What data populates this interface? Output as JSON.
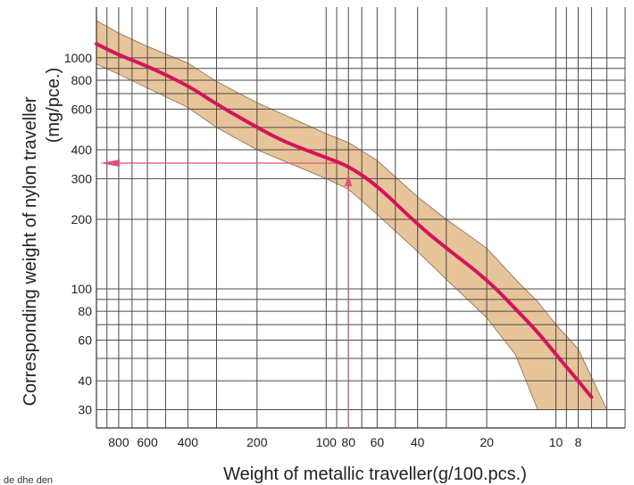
{
  "chart_data": {
    "type": "line",
    "xlabel": "Weight of metallic traveller(g/100.pcs.)",
    "ylabel_line1": "Corresponding weight of nylon traveller",
    "ylabel_line2": "(mg/pce.)",
    "x_scale": "log-reversed",
    "y_scale": "log",
    "xlim": [
      1000,
      5
    ],
    "ylim": [
      25,
      1600
    ],
    "x_ticks": [
      {
        "value": 800,
        "label": "800"
      },
      {
        "value": 600,
        "label": "600"
      },
      {
        "value": 400,
        "label": "400"
      },
      {
        "value": 200,
        "label": "200"
      },
      {
        "value": 100,
        "label": "100"
      },
      {
        "value": 80,
        "label": "80"
      },
      {
        "value": 60,
        "label": "60"
      },
      {
        "value": 40,
        "label": "40"
      },
      {
        "value": 20,
        "label": "20"
      },
      {
        "value": 10,
        "label": "10"
      },
      {
        "value": 8,
        "label": "8"
      }
    ],
    "x_grid": [
      1000,
      900,
      800,
      700,
      600,
      500,
      400,
      300,
      200,
      100,
      90,
      80,
      70,
      60,
      50,
      40,
      30,
      20,
      10,
      9,
      8,
      7,
      6,
      5
    ],
    "y_ticks": [
      {
        "value": 1000,
        "label": "1000"
      },
      {
        "value": 800,
        "label": "800"
      },
      {
        "value": 600,
        "label": "600"
      },
      {
        "value": 400,
        "label": "400"
      },
      {
        "value": 300,
        "label": "300"
      },
      {
        "value": 200,
        "label": "200"
      },
      {
        "value": 100,
        "label": "100"
      },
      {
        "value": 80,
        "label": "80"
      },
      {
        "value": 60,
        "label": "60"
      },
      {
        "value": 40,
        "label": "40"
      },
      {
        "value": 30,
        "label": "30"
      }
    ],
    "y_grid": [
      1000,
      900,
      800,
      700,
      600,
      500,
      400,
      300,
      200,
      100,
      90,
      80,
      70,
      60,
      50,
      40,
      30
    ],
    "series": [
      {
        "color": "#d4145a",
        "points": [
          [
            1000,
            1150
          ],
          [
            800,
            1030
          ],
          [
            600,
            920
          ],
          [
            400,
            760
          ],
          [
            300,
            630
          ],
          [
            200,
            500
          ],
          [
            150,
            430
          ],
          [
            100,
            370
          ],
          [
            80,
            340
          ],
          [
            60,
            280
          ],
          [
            40,
            190
          ],
          [
            30,
            150
          ],
          [
            20,
            110
          ],
          [
            15,
            82
          ],
          [
            12,
            65
          ],
          [
            10,
            52
          ],
          [
            8,
            40
          ],
          [
            7,
            34
          ]
        ]
      }
    ],
    "band": {
      "color": "#e8c49a",
      "upper": [
        [
          1000,
          1450
        ],
        [
          800,
          1280
        ],
        [
          600,
          1120
        ],
        [
          400,
          950
        ],
        [
          300,
          790
        ],
        [
          200,
          640
        ],
        [
          100,
          470
        ],
        [
          80,
          430
        ],
        [
          60,
          360
        ],
        [
          40,
          250
        ],
        [
          30,
          200
        ],
        [
          20,
          150
        ],
        [
          15,
          110
        ],
        [
          12,
          88
        ],
        [
          10,
          70
        ],
        [
          8,
          55
        ],
        [
          6,
          30
        ]
      ],
      "lower": [
        [
          1000,
          940
        ],
        [
          800,
          850
        ],
        [
          600,
          740
        ],
        [
          400,
          610
        ],
        [
          300,
          500
        ],
        [
          200,
          400
        ],
        [
          100,
          300
        ],
        [
          80,
          270
        ],
        [
          60,
          210
        ],
        [
          40,
          145
        ],
        [
          30,
          110
        ],
        [
          20,
          75
        ],
        [
          15,
          52
        ],
        [
          12,
          30
        ]
      ]
    },
    "annotation": {
      "color": "#e0507a",
      "x_value": 80,
      "y_value": 350
    },
    "grid": true
  },
  "page": {
    "crop_text": "de dhe den"
  }
}
